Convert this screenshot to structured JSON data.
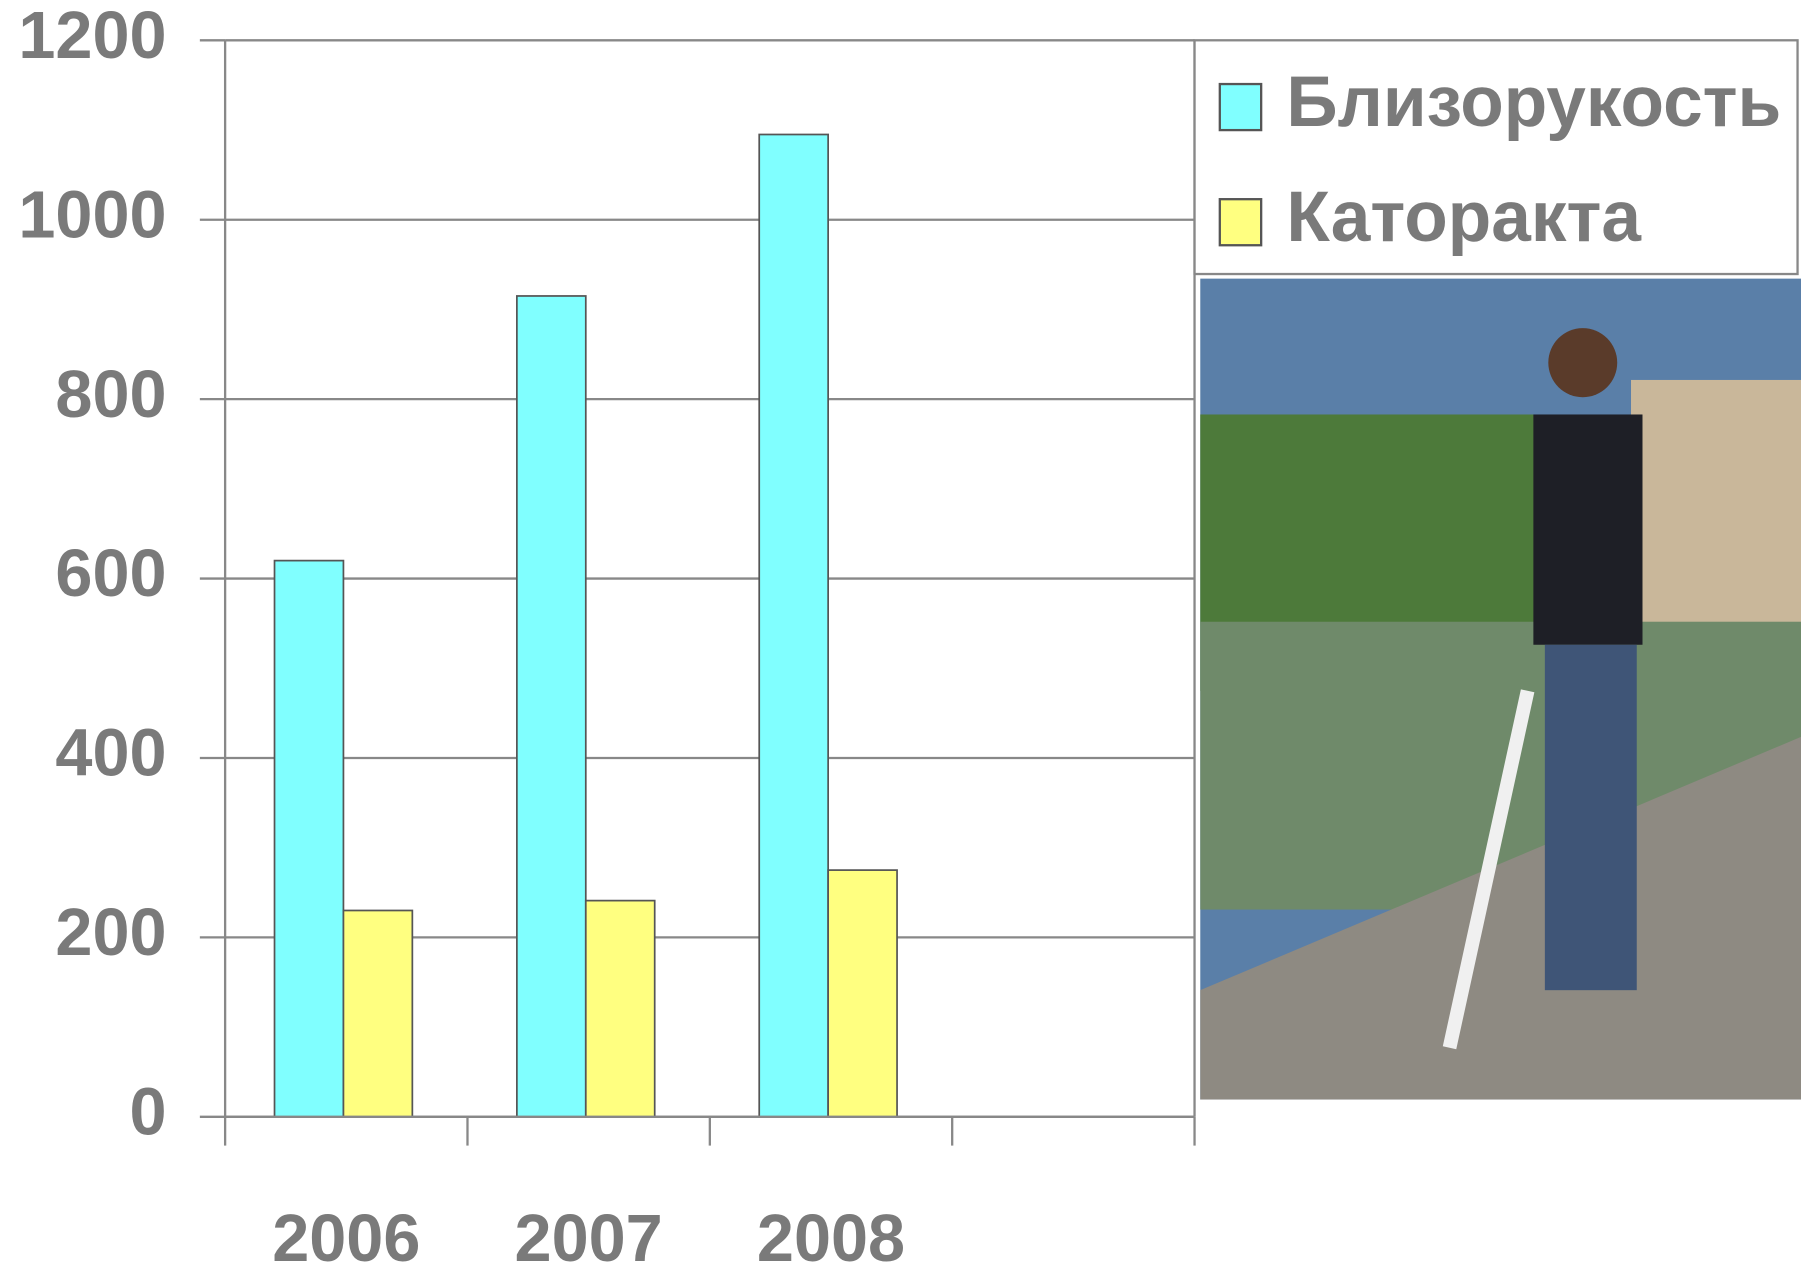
{
  "chart_data": {
    "type": "bar",
    "categories": [
      "2006",
      "2007",
      "2008",
      null
    ],
    "series": [
      {
        "name": "Близорукость",
        "color": "#80ffff",
        "values": [
          620,
          915,
          1095,
          null
        ]
      },
      {
        "name": "Каторакта",
        "color": "#ffff80",
        "values": [
          230,
          241,
          275,
          null
        ]
      }
    ],
    "ylim": [
      0,
      1200
    ],
    "yticks": [
      0,
      200,
      400,
      600,
      800,
      1000,
      1200
    ],
    "grid": true,
    "legend": "top-right"
  }
}
